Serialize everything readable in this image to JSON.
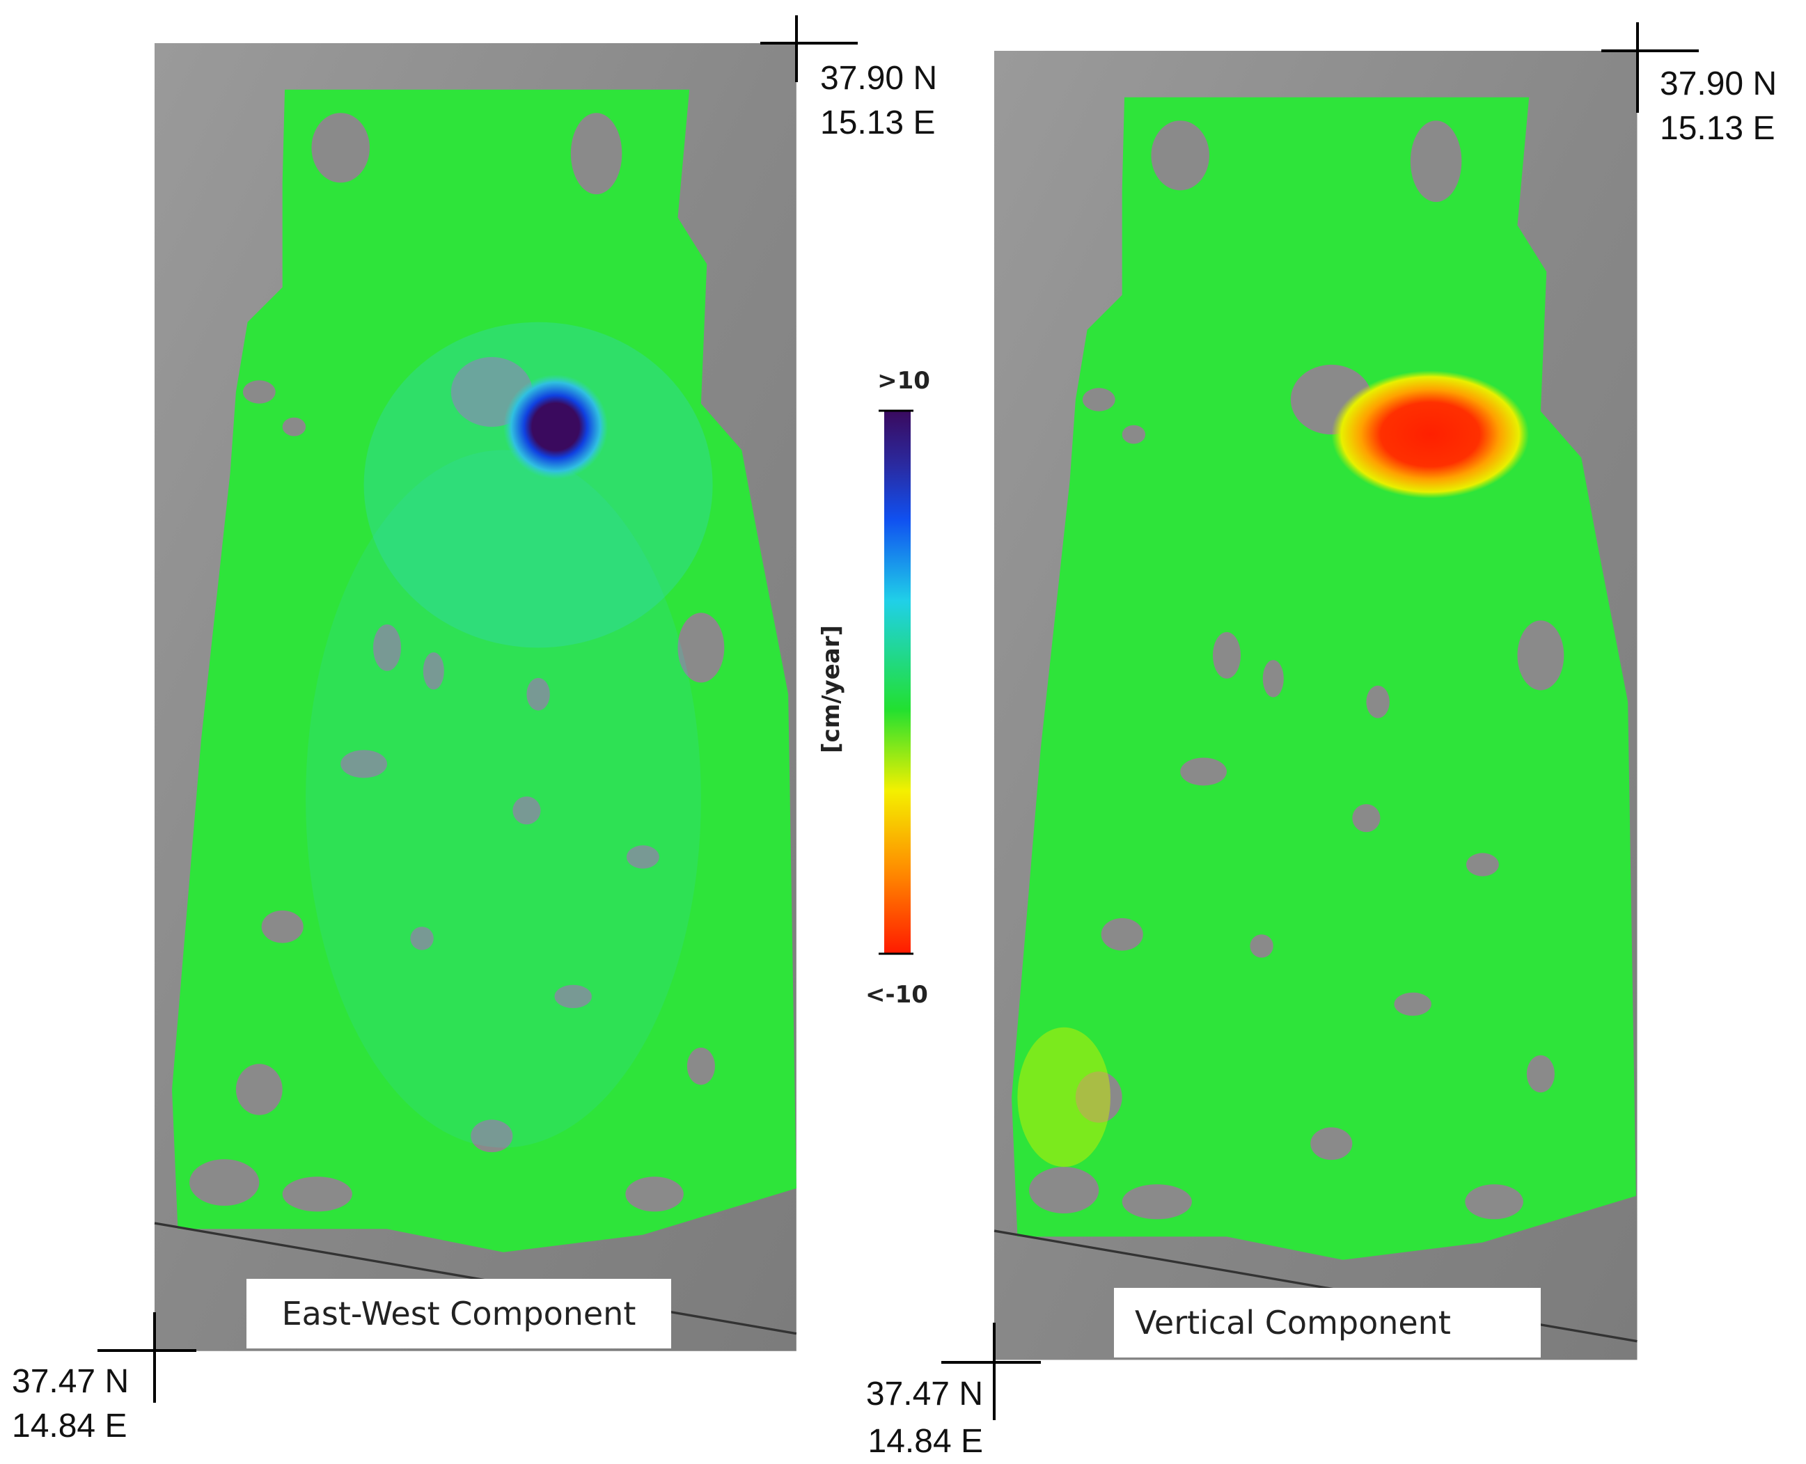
{
  "panels": [
    {
      "label": "East-West Component",
      "top_right": {
        "lat": "37.90 N",
        "lon": "15.13 E"
      },
      "bottom_left": {
        "lat": "37.47 N",
        "lon": "14.84 E"
      }
    },
    {
      "label": "Vertical Component",
      "top_right": {
        "lat": "37.90 N",
        "lon": "15.13 E"
      },
      "bottom_left": {
        "lat": "37.47 N",
        "lon": "14.84 E"
      }
    }
  ],
  "colorbar": {
    "max_label": ">10",
    "min_label": "<-10",
    "unit": "[cm/year]"
  }
}
